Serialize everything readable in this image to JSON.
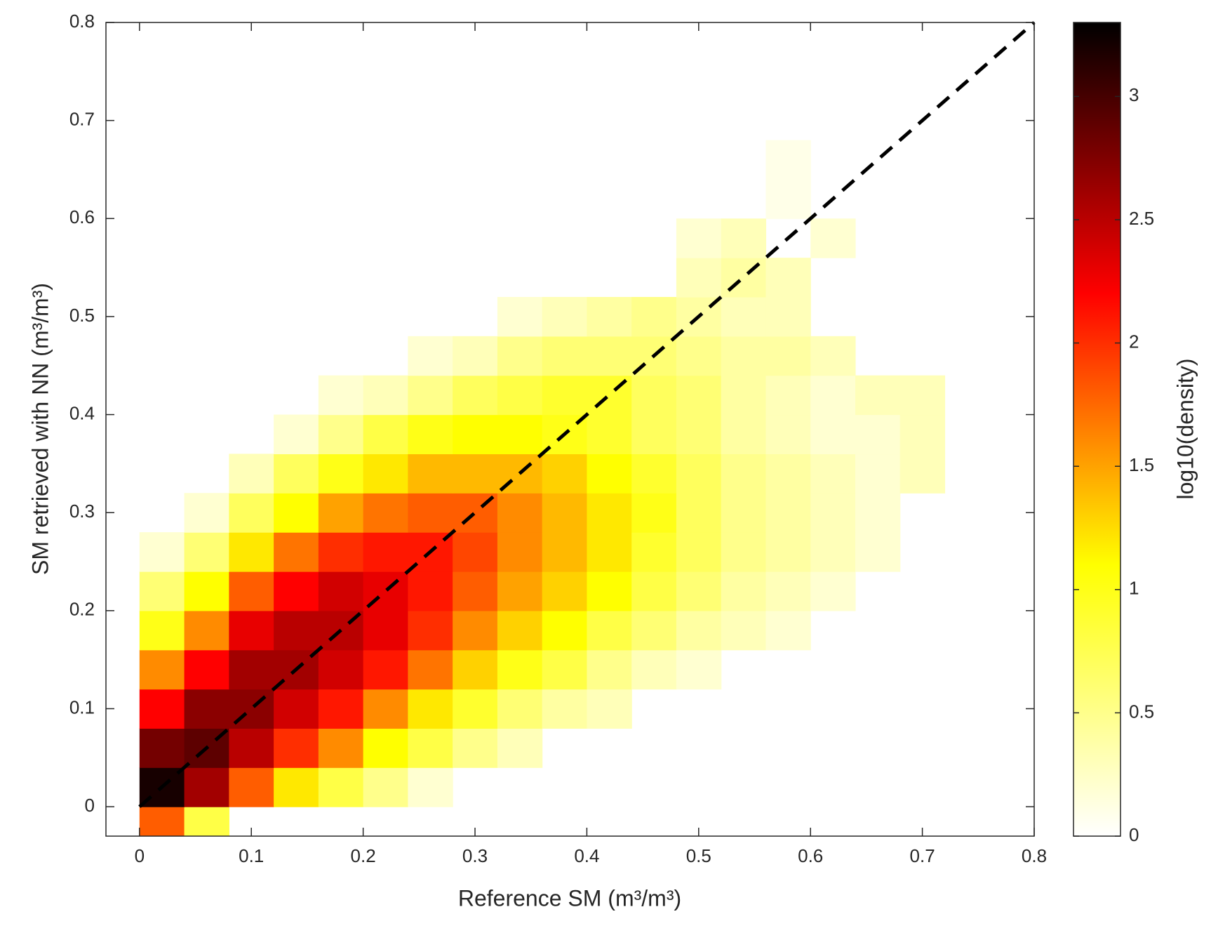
{
  "chart_data": {
    "type": "histogram2d",
    "xlabel": "Reference SM (m³/m³)",
    "ylabel": "SM retrieved with NN (m³/m³)",
    "colorbar_label": "log10(density)",
    "xlim": [
      -0.03,
      0.8
    ],
    "ylim": [
      -0.03,
      0.8
    ],
    "xticks": [
      0,
      0.1,
      0.2,
      0.3,
      0.4,
      0.5,
      0.6,
      0.7,
      0.8
    ],
    "yticks": [
      0,
      0.1,
      0.2,
      0.3,
      0.4,
      0.5,
      0.6,
      0.7,
      0.8
    ],
    "clim": [
      0,
      3.3
    ],
    "cticks": [
      0,
      0.5,
      1,
      1.5,
      2,
      2.5,
      3
    ],
    "colormap": [
      "#ffffff",
      "#ffff00",
      "#ff0000",
      "#000000"
    ],
    "xbins": [
      0,
      0.04,
      0.08,
      0.12,
      0.16,
      0.2,
      0.24,
      0.28,
      0.32,
      0.36,
      0.4,
      0.44,
      0.48,
      0.52,
      0.56,
      0.6,
      0.64,
      0.68,
      0.72
    ],
    "ybins": [
      -0.04,
      0,
      0.04,
      0.08,
      0.12,
      0.16,
      0.2,
      0.24,
      0.28,
      0.32,
      0.36,
      0.4,
      0.44,
      0.48,
      0.52,
      0.56,
      0.6,
      0.64,
      0.68
    ],
    "values": [
      [
        1.8,
        0.8,
        null,
        null,
        null,
        null,
        null,
        null,
        null,
        null,
        null,
        null,
        null,
        null,
        null,
        null,
        null,
        null
      ],
      [
        3.2,
        2.6,
        1.8,
        1.2,
        0.8,
        0.5,
        0.2,
        null,
        null,
        null,
        null,
        null,
        null,
        null,
        null,
        null,
        null,
        null
      ],
      [
        2.8,
        2.9,
        2.5,
        2.0,
        1.6,
        1.1,
        0.8,
        0.5,
        0.3,
        null,
        null,
        null,
        null,
        null,
        null,
        null,
        null,
        null
      ],
      [
        2.2,
        2.7,
        2.7,
        2.4,
        2.1,
        1.6,
        1.2,
        0.9,
        0.6,
        0.4,
        0.3,
        null,
        null,
        null,
        null,
        null,
        null,
        null
      ],
      [
        1.6,
        2.2,
        2.6,
        2.6,
        2.4,
        2.1,
        1.7,
        1.3,
        1.0,
        0.8,
        0.5,
        0.3,
        0.2,
        null,
        null,
        null,
        null,
        null
      ],
      [
        1.0,
        1.6,
        2.3,
        2.5,
        2.5,
        2.3,
        2.0,
        1.6,
        1.3,
        1.1,
        0.8,
        0.6,
        0.4,
        0.3,
        0.2,
        null,
        null,
        null
      ],
      [
        0.6,
        1.1,
        1.8,
        2.2,
        2.4,
        2.3,
        2.1,
        1.8,
        1.5,
        1.3,
        1.1,
        0.8,
        0.6,
        0.4,
        0.3,
        0.2,
        null,
        null
      ],
      [
        0.2,
        0.6,
        1.2,
        1.7,
        2.0,
        2.1,
        2.1,
        1.9,
        1.6,
        1.4,
        1.2,
        0.9,
        0.7,
        0.5,
        0.4,
        0.3,
        0.2,
        null
      ],
      [
        null,
        0.2,
        0.7,
        1.1,
        1.5,
        1.7,
        1.8,
        1.8,
        1.6,
        1.4,
        1.2,
        1.0,
        0.7,
        0.5,
        0.4,
        0.3,
        0.2,
        null
      ],
      [
        null,
        null,
        0.3,
        0.7,
        1.0,
        1.2,
        1.4,
        1.4,
        1.4,
        1.3,
        1.1,
        0.9,
        0.7,
        0.5,
        0.4,
        0.3,
        0.2,
        0.3
      ],
      [
        null,
        null,
        null,
        0.2,
        0.5,
        0.8,
        1.0,
        1.1,
        1.1,
        1.0,
        0.9,
        0.7,
        0.6,
        0.4,
        0.3,
        0.2,
        0.2,
        0.3
      ],
      [
        null,
        null,
        null,
        null,
        0.2,
        0.3,
        0.5,
        0.7,
        0.8,
        0.9,
        0.9,
        0.7,
        0.6,
        0.4,
        0.3,
        0.2,
        0.3,
        0.3
      ],
      [
        null,
        null,
        null,
        null,
        null,
        null,
        0.2,
        0.3,
        0.5,
        0.6,
        0.6,
        0.6,
        0.5,
        0.4,
        0.4,
        0.3,
        null,
        null
      ],
      [
        null,
        null,
        null,
        null,
        null,
        null,
        null,
        null,
        0.2,
        0.3,
        0.4,
        0.5,
        0.4,
        0.3,
        0.3,
        null,
        null,
        null
      ],
      [
        null,
        null,
        null,
        null,
        null,
        null,
        null,
        null,
        null,
        null,
        null,
        null,
        0.3,
        0.4,
        0.3,
        null,
        null,
        null
      ],
      [
        null,
        null,
        null,
        null,
        null,
        null,
        null,
        null,
        null,
        null,
        null,
        null,
        0.2,
        0.3,
        null,
        0.2,
        null,
        null
      ],
      [
        null,
        null,
        null,
        null,
        null,
        null,
        null,
        null,
        null,
        null,
        null,
        null,
        null,
        null,
        0.1,
        null,
        null,
        null
      ],
      [
        null,
        null,
        null,
        null,
        null,
        null,
        null,
        null,
        null,
        null,
        null,
        null,
        null,
        null,
        0.1,
        null,
        null,
        null
      ]
    ],
    "reference_line": {
      "x": [
        0,
        0.8
      ],
      "y": [
        0,
        0.8
      ]
    }
  }
}
